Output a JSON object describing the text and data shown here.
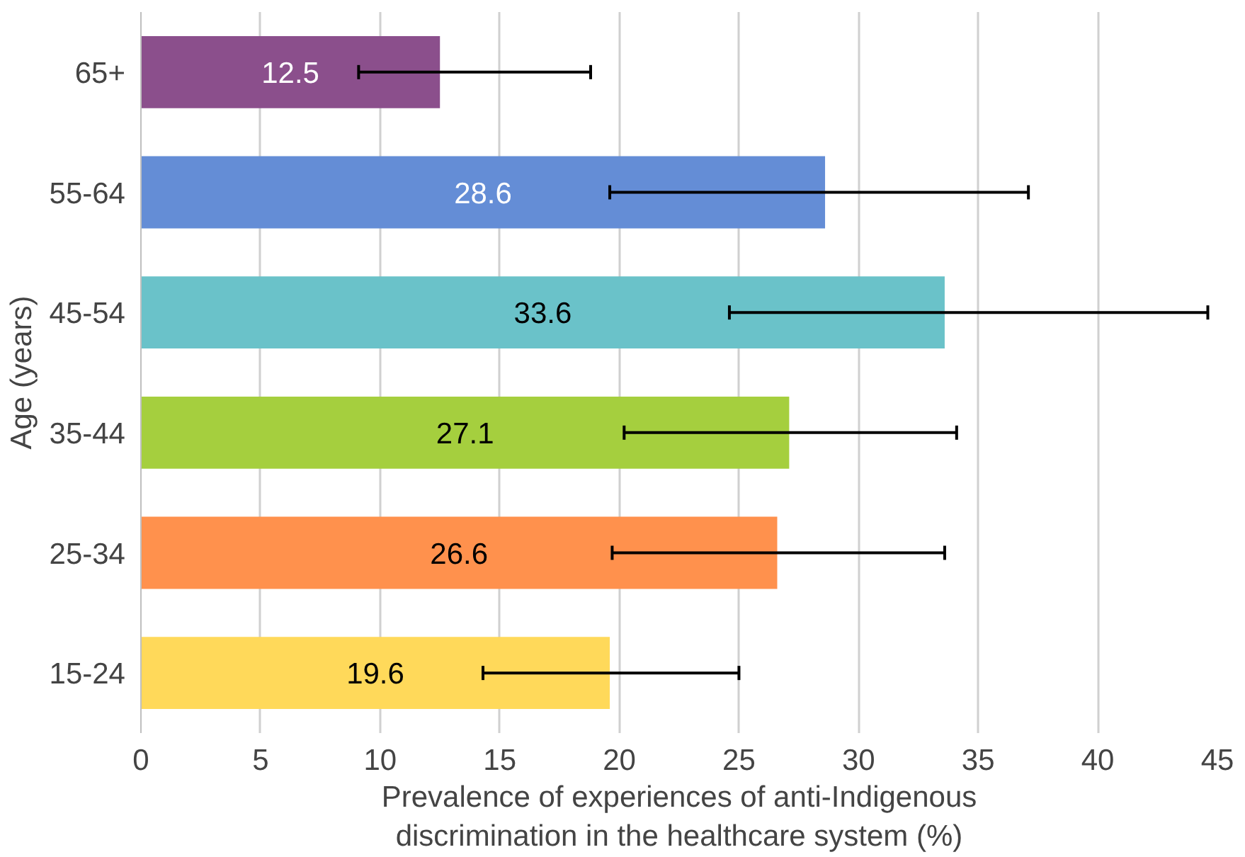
{
  "chart_data": {
    "type": "bar",
    "orientation": "horizontal",
    "xlabel": "Prevalence of experiences of anti-Indigenous discrimination in the healthcare system (%)",
    "ylabel": "Age (years)",
    "categories": [
      "65+",
      "55-64",
      "45-54",
      "35-44",
      "25-34",
      "15-24"
    ],
    "values": [
      12.5,
      28.6,
      33.6,
      27.1,
      26.6,
      19.6
    ],
    "colors": [
      "#8b4f8c",
      "#648dd6",
      "#6ac2c9",
      "#a5cf3e",
      "#ff914d",
      "#ffd95a"
    ],
    "errors": [
      [
        9.1,
        18.8
      ],
      [
        19.6,
        37.1
      ],
      [
        24.6,
        44.6
      ],
      [
        20.2,
        34.1
      ],
      [
        19.7,
        33.6
      ],
      [
        14.3,
        25.0
      ]
    ],
    "xlim": [
      0,
      45
    ],
    "xticks": [
      0,
      5,
      10,
      15,
      20,
      25,
      30,
      35,
      40,
      45
    ],
    "grid": "x",
    "data_labels": true
  }
}
